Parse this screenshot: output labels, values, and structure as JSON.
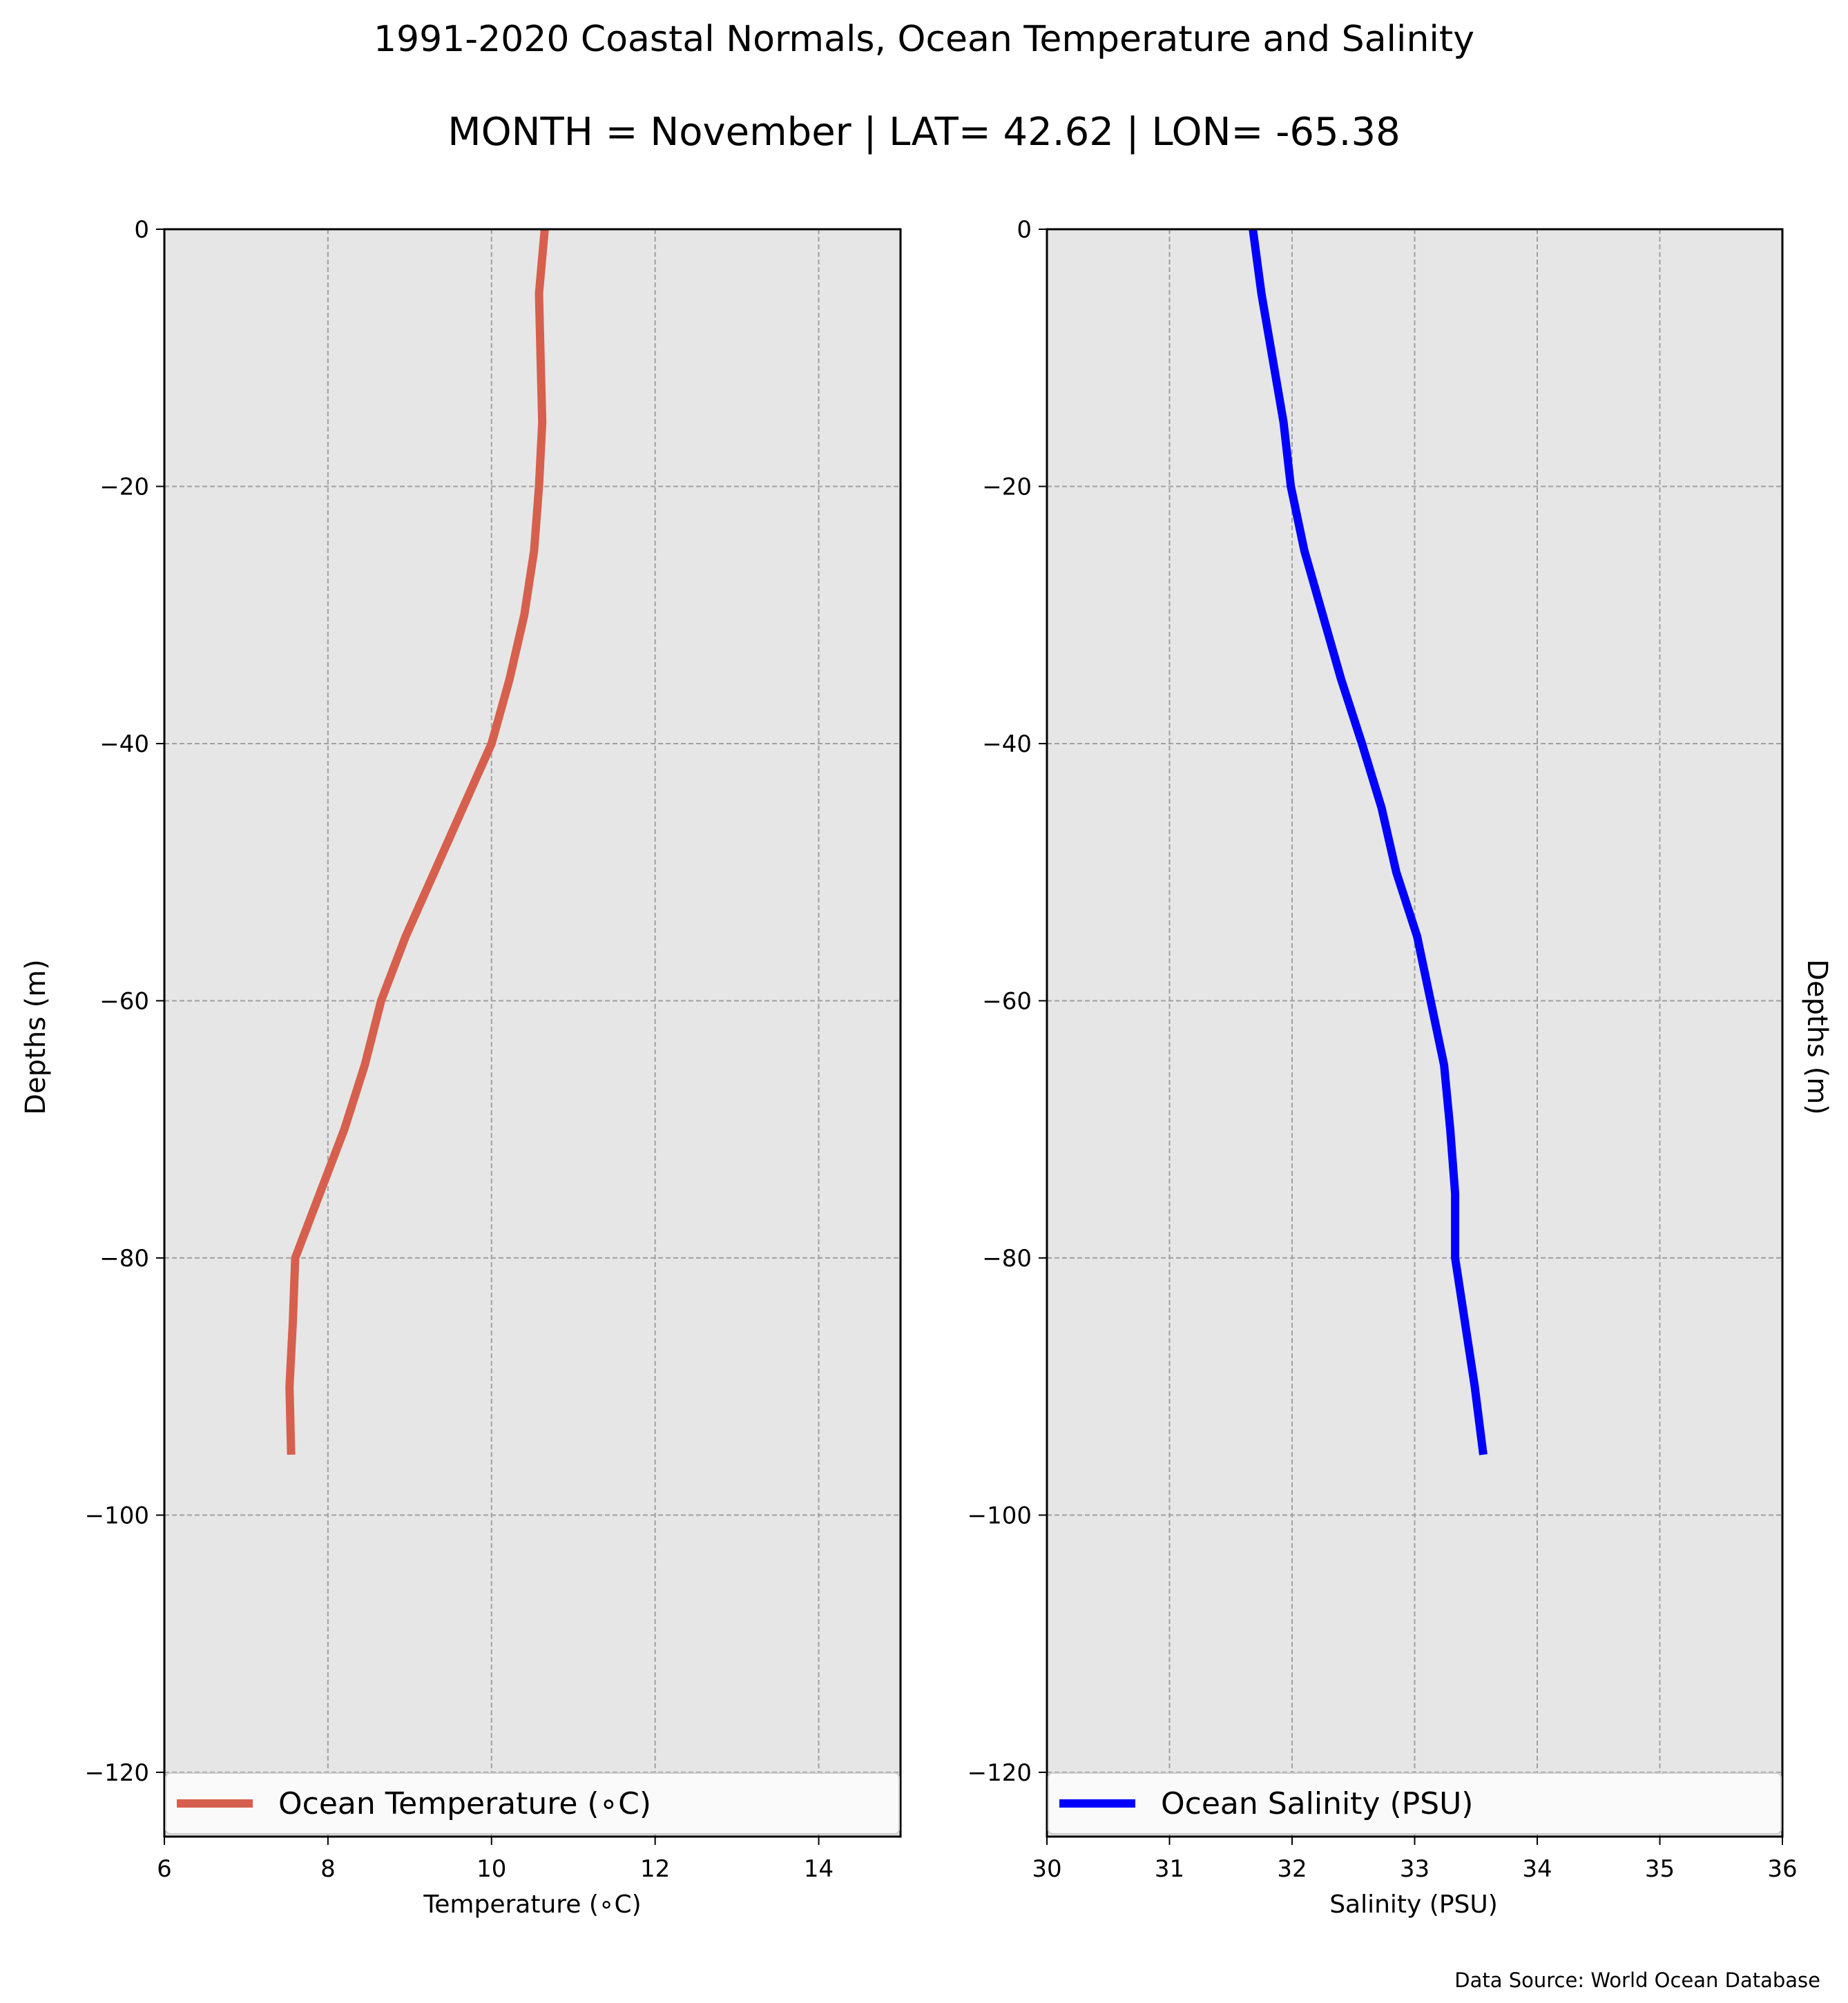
{
  "title": "1991-2020 Coastal Normals, Ocean Temperature and Salinity",
  "subtitle": "MONTH = November | LAT= 42.62 | LON= -65.38",
  "source": "Data Source: World Ocean Database",
  "colors": {
    "temperature": "#d6604d",
    "salinity": "#0000ff",
    "plot_bg": "#e6e6e6",
    "grid": "#a0a0a0"
  },
  "chart_data": [
    {
      "type": "line",
      "xlabel": "Temperature ($^\\circ$C)",
      "xlabel_display": "Temperature (∘C)",
      "ylabel": "Depths (m)",
      "xlim": [
        6,
        15
      ],
      "ylim": [
        -125,
        0
      ],
      "xticks": [
        6,
        8,
        10,
        12,
        14
      ],
      "yticks": [
        0,
        -20,
        -40,
        -60,
        -80,
        -100,
        -120
      ],
      "grid": true,
      "legend_placement": "lower center",
      "series": [
        {
          "name": "Ocean Temperature (∘C)",
          "x": [
            10.65,
            10.58,
            10.6,
            10.62,
            10.58,
            10.52,
            10.4,
            10.22,
            10.0,
            9.65,
            9.3,
            8.95,
            8.65,
            8.45,
            8.2,
            7.9,
            7.6,
            7.57,
            7.53,
            7.55
          ],
          "y": [
            0,
            -5,
            -10,
            -15,
            -20,
            -25,
            -30,
            -35,
            -40,
            -45,
            -50,
            -55,
            -60,
            -65,
            -70,
            -75,
            -80,
            -85,
            -90,
            -95.3
          ]
        }
      ]
    },
    {
      "type": "line",
      "xlabel": "Salinity (PSU)",
      "ylabel": "Depths (m)",
      "xlim": [
        30,
        36
      ],
      "ylim": [
        -125,
        0
      ],
      "xticks": [
        30,
        31,
        32,
        33,
        34,
        35,
        36
      ],
      "yticks": [
        0,
        -20,
        -40,
        -60,
        -80,
        -100,
        -120
      ],
      "grid": true,
      "legend_placement": "lower center",
      "series": [
        {
          "name": "Ocean Salinity (PSU)",
          "x": [
            31.68,
            31.75,
            31.84,
            31.93,
            31.99,
            32.1,
            32.25,
            32.4,
            32.57,
            32.73,
            32.85,
            33.02,
            33.13,
            33.24,
            33.29,
            33.33,
            33.33,
            33.41,
            33.49,
            33.56
          ],
          "y": [
            0,
            -5,
            -10,
            -15,
            -20,
            -25,
            -30,
            -35,
            -40,
            -45,
            -50,
            -55,
            -60,
            -65,
            -70,
            -75,
            -80,
            -85,
            -90,
            -95.3
          ]
        }
      ]
    }
  ]
}
